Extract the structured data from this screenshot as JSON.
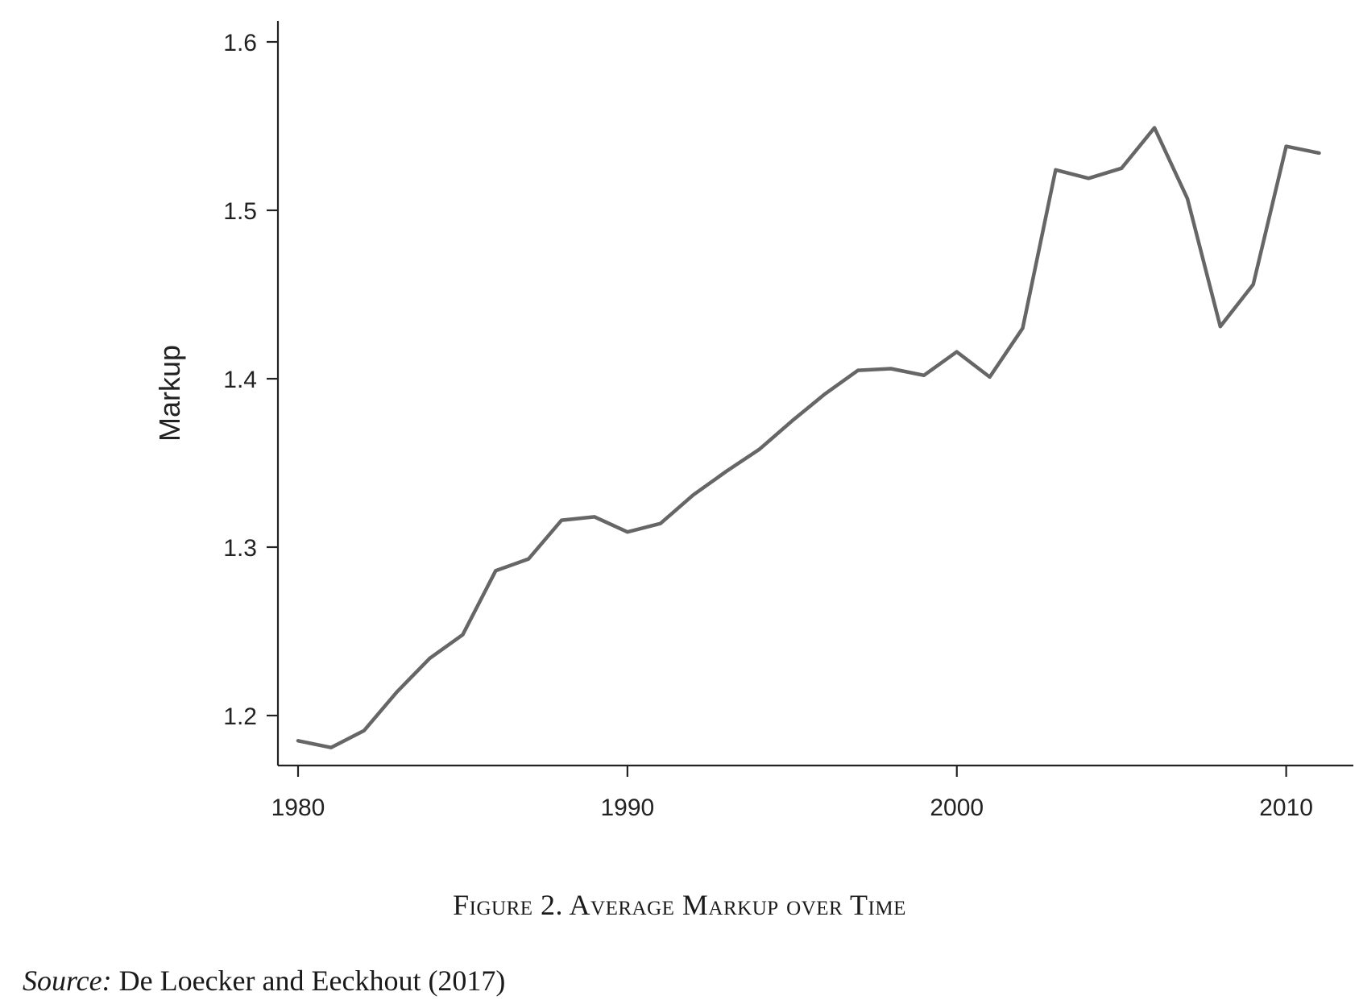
{
  "chart_data": {
    "type": "line",
    "title": "",
    "xlabel": "",
    "ylabel": "Markup",
    "xlim": [
      1980,
      2011
    ],
    "ylim": [
      1.17,
      1.61
    ],
    "x_ticks": [
      "1980",
      "1990",
      "2000",
      "2010"
    ],
    "y_ticks": [
      "1.2",
      "1.3",
      "1.4",
      "1.5",
      "1.6"
    ],
    "grid": false,
    "series": [
      {
        "color": "#666666",
        "x": [
          1980,
          1981,
          1982,
          1983,
          1984,
          1985,
          1986,
          1987,
          1988,
          1989,
          1990,
          1991,
          1992,
          1993,
          1994,
          1995,
          1996,
          1997,
          1998,
          1999,
          2000,
          2001,
          2002,
          2003,
          2004,
          2005,
          2006,
          2007,
          2008,
          2009,
          2010,
          2011
        ],
        "y": [
          1.185,
          1.181,
          1.191,
          1.214,
          1.234,
          1.248,
          1.286,
          1.293,
          1.316,
          1.318,
          1.309,
          1.314,
          1.331,
          1.345,
          1.358,
          1.375,
          1.391,
          1.405,
          1.406,
          1.402,
          1.416,
          1.401,
          1.43,
          1.524,
          1.519,
          1.525,
          1.549,
          1.507,
          1.431,
          1.456,
          1.538,
          1.534
        ]
      }
    ]
  },
  "caption": {
    "text": "Figure 2. Average Markup over Time"
  },
  "source": {
    "label": "Source:",
    "text": " De Loecker and Eeckhout (2017)"
  }
}
